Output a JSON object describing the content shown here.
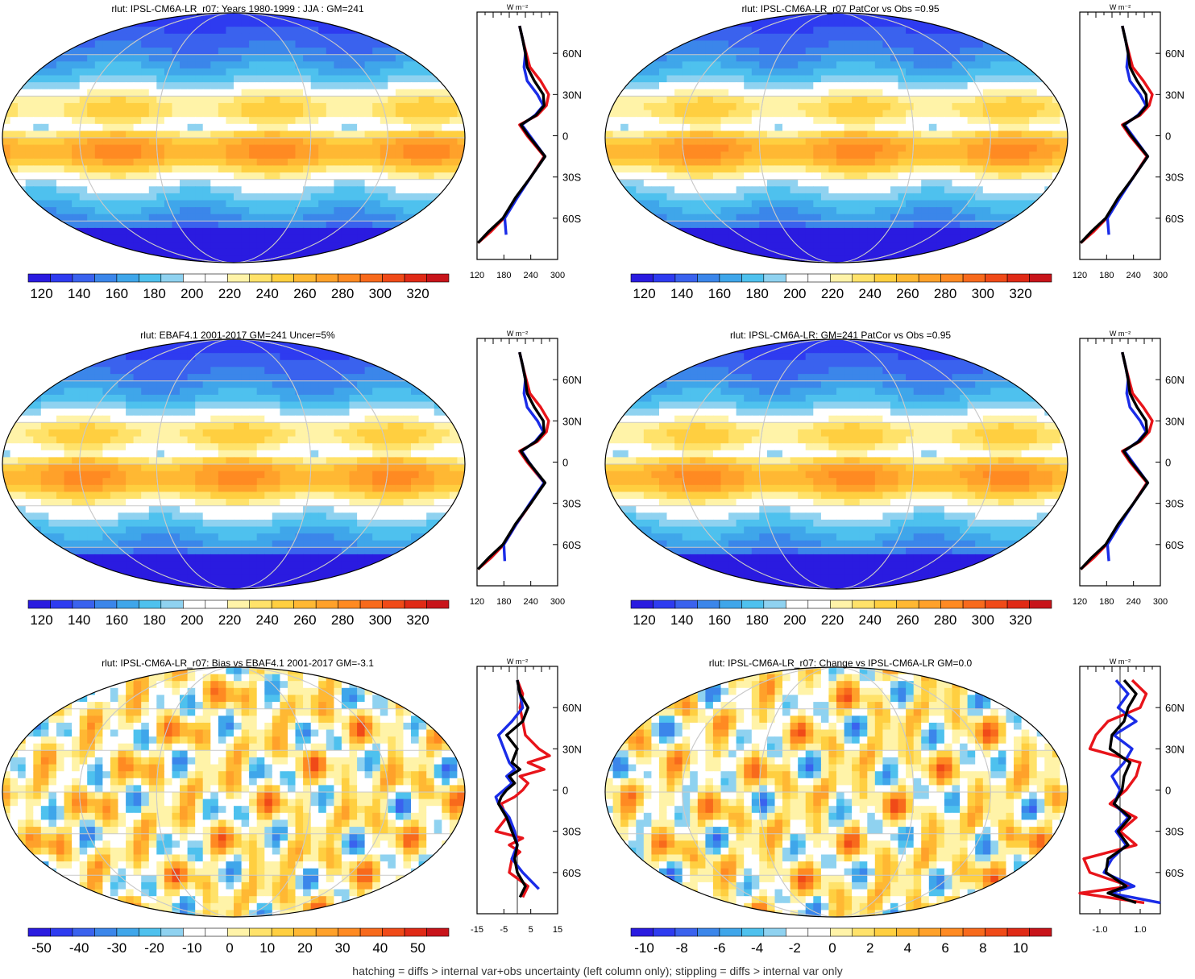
{
  "footnote": "hatching = diffs > internal var+obs uncertainty (left column only); stippling = diffs > internal var only",
  "colors": {
    "abs_scale": [
      "#2a1be0",
      "#2e3bf0",
      "#3a62ee",
      "#3b86ea",
      "#3fa6ea",
      "#4ec1ee",
      "#8fd2f0",
      "#ffffff",
      "#ffffff",
      "#fff3a8",
      "#ffe26a",
      "#ffcf40",
      "#ffb833",
      "#ffa12a",
      "#ff8a22",
      "#f86a1c",
      "#f04a18",
      "#e02a16",
      "#c8141a"
    ],
    "diff_scale": [
      "#2a1be0",
      "#2e3bf0",
      "#3a62ee",
      "#3b86ea",
      "#3fa6ea",
      "#4ec1ee",
      "#8fd2f0",
      "#ffffff",
      "#ffffff",
      "#fff3a8",
      "#ffe26a",
      "#ffcf40",
      "#ffb833",
      "#ffa12a",
      "#ff8a22",
      "#f86a1c",
      "#f04a18",
      "#e02a16",
      "#c8141a"
    ]
  },
  "chart_data": [
    {
      "type": "heatmap",
      "title": "rlut: IPSL-CM6A-LR_r07: Years 1980-1999 : JJA : GM=241",
      "colorbar_labels": [
        "120",
        "140",
        "160",
        "180",
        "200",
        "220",
        "240",
        "260",
        "280",
        "300",
        "320"
      ],
      "profile": {
        "unit_label": "W m⁻²",
        "x_tick_labels": [
          "120",
          "180",
          "240",
          "300"
        ],
        "xlim": [
          120,
          300
        ],
        "lat_tick_labels": [
          "60N",
          "30N",
          "0",
          "30S",
          "60S"
        ],
        "lat_ticks": [
          60,
          30,
          0,
          -30,
          -60
        ],
        "series": [
          {
            "color": "red",
            "lat": [
              -78,
              -70,
              -60,
              -45,
              -30,
              -15,
              0,
              8,
              15,
              22,
              30,
              40,
              50,
              60,
              70,
              80
            ],
            "values": [
              122,
              150,
              180,
              208,
              240,
              270,
              232,
              215,
              255,
              275,
              280,
              262,
              238,
              230,
              222,
              215
            ]
          },
          {
            "color": "blue",
            "lat": [
              -72,
              -60,
              -45,
              -30,
              -15,
              0,
              8,
              15,
              22,
              30,
              40,
              50,
              60,
              70,
              80
            ],
            "values": [
              185,
              182,
              210,
              240,
              272,
              238,
              220,
              250,
              268,
              255,
              232,
              225,
              228,
              222,
              215
            ]
          },
          {
            "color": "black",
            "lat": [
              -78,
              -70,
              -60,
              -45,
              -30,
              -15,
              0,
              8,
              15,
              22,
              30,
              40,
              50,
              60,
              70,
              80
            ],
            "values": [
              122,
              145,
              178,
              206,
              240,
              272,
              235,
              218,
              252,
              270,
              268,
              248,
              232,
              228,
              222,
              215
            ]
          }
        ]
      }
    },
    {
      "type": "heatmap",
      "title": "rlut: IPSL-CM6A-LR_r07 PatCor vs Obs =0.95",
      "colorbar_labels": [
        "120",
        "140",
        "160",
        "180",
        "200",
        "220",
        "240",
        "260",
        "280",
        "300",
        "320"
      ],
      "profile": {
        "unit_label": "W m⁻²",
        "x_tick_labels": [
          "120",
          "180",
          "240",
          "300"
        ],
        "xlim": [
          120,
          300
        ],
        "lat_tick_labels": [
          "60N",
          "30N",
          "0",
          "30S",
          "60S"
        ],
        "lat_ticks": [
          60,
          30,
          0,
          -30,
          -60
        ],
        "series": [
          {
            "color": "red",
            "lat": [
              -78,
              -70,
              -60,
              -45,
              -30,
              -15,
              0,
              8,
              15,
              22,
              30,
              40,
              50,
              60,
              70,
              80
            ],
            "values": [
              122,
              150,
              180,
              208,
              240,
              270,
              232,
              215,
              255,
              275,
              282,
              262,
              238,
              230,
              222,
              215
            ]
          },
          {
            "color": "blue",
            "lat": [
              -72,
              -60,
              -45,
              -30,
              -15,
              0,
              8,
              15,
              22,
              30,
              40,
              50,
              60,
              70,
              80
            ],
            "values": [
              185,
              182,
              210,
              240,
              272,
              238,
              220,
              250,
              268,
              255,
              232,
              225,
              228,
              222,
              215
            ]
          },
          {
            "color": "black",
            "lat": [
              -78,
              -70,
              -60,
              -45,
              -30,
              -15,
              0,
              8,
              15,
              22,
              30,
              40,
              50,
              60,
              70,
              80
            ],
            "values": [
              122,
              145,
              178,
              206,
              240,
              272,
              235,
              218,
              252,
              270,
              268,
              248,
              232,
              228,
              222,
              215
            ]
          }
        ]
      }
    },
    {
      "type": "heatmap",
      "title": "rlut: EBAF4.1 2001-2017 GM=241 Uncer=5%",
      "colorbar_labels": [
        "120",
        "140",
        "160",
        "180",
        "200",
        "220",
        "240",
        "260",
        "280",
        "300",
        "320"
      ],
      "profile": {
        "unit_label": "W m⁻²",
        "x_tick_labels": [
          "120",
          "180",
          "240",
          "300"
        ],
        "xlim": [
          120,
          300
        ],
        "lat_tick_labels": [
          "60N",
          "30N",
          "0",
          "30S",
          "60S"
        ],
        "lat_ticks": [
          60,
          30,
          0,
          -30,
          -60
        ],
        "series": [
          {
            "color": "red",
            "lat": [
              -78,
              -70,
              -60,
              -45,
              -30,
              -15,
              0,
              8,
              15,
              22,
              30,
              40,
              50,
              60,
              70,
              80
            ],
            "values": [
              122,
              150,
              180,
              208,
              240,
              270,
              232,
              215,
              255,
              275,
              280,
              262,
              238,
              230,
              222,
              215
            ]
          },
          {
            "color": "blue",
            "lat": [
              -72,
              -60,
              -45,
              -30,
              -15,
              0,
              8,
              15,
              22,
              30,
              40,
              50,
              60,
              70,
              80
            ],
            "values": [
              182,
              180,
              208,
              238,
              270,
              236,
              220,
              250,
              268,
              255,
              232,
              225,
              228,
              222,
              215
            ]
          },
          {
            "color": "black",
            "lat": [
              -78,
              -70,
              -60,
              -45,
              -30,
              -15,
              0,
              8,
              15,
              22,
              30,
              40,
              50,
              60,
              70,
              80
            ],
            "values": [
              122,
              145,
              178,
              206,
              240,
              272,
              235,
              218,
              252,
              270,
              268,
              248,
              232,
              228,
              222,
              215
            ]
          }
        ]
      }
    },
    {
      "type": "heatmap",
      "title": "rlut: IPSL-CM6A-LR: GM=241 PatCor vs Obs =0.95",
      "colorbar_labels": [
        "120",
        "140",
        "160",
        "180",
        "200",
        "220",
        "240",
        "260",
        "280",
        "300",
        "320"
      ],
      "profile": {
        "unit_label": "W m⁻²",
        "x_tick_labels": [
          "120",
          "180",
          "240",
          "300"
        ],
        "xlim": [
          120,
          300
        ],
        "lat_tick_labels": [
          "60N",
          "30N",
          "0",
          "30S",
          "60S"
        ],
        "lat_ticks": [
          60,
          30,
          0,
          -30,
          -60
        ],
        "series": [
          {
            "color": "red",
            "lat": [
              -78,
              -70,
              -60,
              -45,
              -30,
              -15,
              0,
              8,
              15,
              22,
              30,
              40,
              50,
              60,
              70,
              80
            ],
            "values": [
              122,
              150,
              180,
              208,
              240,
              270,
              232,
              215,
              255,
              275,
              282,
              262,
              238,
              230,
              222,
              215
            ]
          },
          {
            "color": "blue",
            "lat": [
              -72,
              -60,
              -45,
              -30,
              -15,
              0,
              8,
              15,
              22,
              30,
              40,
              50,
              60,
              70,
              80
            ],
            "values": [
              185,
              182,
              210,
              240,
              272,
              238,
              220,
              250,
              268,
              255,
              232,
              225,
              228,
              222,
              215
            ]
          },
          {
            "color": "black",
            "lat": [
              -78,
              -70,
              -60,
              -45,
              -30,
              -15,
              0,
              8,
              15,
              22,
              30,
              40,
              50,
              60,
              70,
              80
            ],
            "values": [
              122,
              145,
              178,
              206,
              240,
              272,
              235,
              218,
              252,
              270,
              268,
              248,
              232,
              228,
              222,
              215
            ]
          }
        ]
      }
    },
    {
      "type": "heatmap",
      "title": "rlut: IPSL-CM6A-LR_r07: Bias vs EBAF4.1 2001-2017 GM=-3.1",
      "colorbar_labels": [
        "-50",
        "-40",
        "-30",
        "-20",
        "-10",
        "0",
        "10",
        "20",
        "30",
        "40",
        "50"
      ],
      "profile": {
        "unit_label": "W m⁻²",
        "x_tick_labels": [
          "-15",
          "-5",
          "5",
          "15"
        ],
        "xlim": [
          -15,
          15
        ],
        "lat_tick_labels": [
          "60N",
          "30N",
          "0",
          "30S",
          "60S"
        ],
        "lat_ticks": [
          60,
          30,
          0,
          -30,
          -60
        ],
        "series": [
          {
            "color": "red",
            "lat": [
              -78,
              -70,
              -60,
              -50,
              -45,
              -40,
              -35,
              -30,
              -20,
              -10,
              -5,
              0,
              5,
              10,
              15,
              20,
              25,
              30,
              40,
              50,
              60,
              70,
              80
            ],
            "values": [
              2,
              4,
              -3,
              -2,
              1,
              -3,
              2,
              -8,
              -4,
              -6,
              -1,
              2,
              4,
              1,
              10,
              4,
              12,
              8,
              3,
              2,
              1,
              2,
              0
            ]
          },
          {
            "color": "blue",
            "lat": [
              -72,
              -60,
              -50,
              -40,
              -30,
              -20,
              -10,
              -5,
              0,
              5,
              10,
              15,
              20,
              30,
              40,
              50,
              60,
              70,
              80
            ],
            "values": [
              8,
              2,
              -2,
              0,
              -1,
              -3,
              -7,
              -8,
              -5,
              -2,
              -4,
              -1,
              -3,
              -5,
              -7,
              -2,
              2,
              1,
              0
            ]
          },
          {
            "color": "black",
            "lat": [
              -78,
              -70,
              -60,
              -50,
              -40,
              -30,
              -20,
              -10,
              -5,
              0,
              5,
              10,
              15,
              20,
              30,
              40,
              50,
              60,
              70,
              80
            ],
            "values": [
              1,
              3,
              0,
              -1,
              0,
              -2,
              -4,
              -7,
              -6,
              -4,
              -1,
              -3,
              1,
              -2,
              0,
              -4,
              2,
              4,
              1,
              0
            ]
          }
        ]
      }
    },
    {
      "type": "heatmap",
      "title": "rlut: IPSL-CM6A-LR_r07: Change vs IPSL-CM6A-LR GM=0.0",
      "colorbar_labels": [
        "-10",
        "-8",
        "-6",
        "-4",
        "-2",
        "0",
        "2",
        "4",
        "6",
        "8",
        "10"
      ],
      "profile": {
        "unit_label": "W m⁻²",
        "x_tick_labels": [
          "-1.0",
          "1.0"
        ],
        "xlim": [
          -2,
          2
        ],
        "lat_tick_labels": [
          "60N",
          "30N",
          "0",
          "30S",
          "60S"
        ],
        "lat_ticks": [
          60,
          30,
          0,
          -30,
          -60
        ],
        "series": [
          {
            "color": "red",
            "lat": [
              -82,
              -75,
              -70,
              -60,
              -50,
              -40,
              -30,
              -20,
              -10,
              0,
              10,
              20,
              30,
              40,
              50,
              60,
              70,
              80
            ],
            "values": [
              1.2,
              -2.0,
              0.5,
              -1.5,
              -1.8,
              0.8,
              0.0,
              0.8,
              -0.5,
              0.3,
              0.8,
              1.0,
              -1.5,
              -1.2,
              -0.6,
              1.0,
              1.3,
              0.6
            ]
          },
          {
            "color": "blue",
            "lat": [
              -82,
              -75,
              -70,
              -60,
              -50,
              -40,
              -30,
              -20,
              -10,
              0,
              10,
              20,
              30,
              40,
              50,
              60,
              70,
              80
            ],
            "values": [
              2.0,
              -0.5,
              0.7,
              -0.8,
              -0.4,
              0.3,
              -0.2,
              0.4,
              -0.3,
              0.0,
              -0.4,
              0.2,
              0.6,
              -0.3,
              0.8,
              -0.1,
              0.4,
              -0.2
            ]
          },
          {
            "color": "black",
            "lat": [
              -82,
              -75,
              -70,
              -60,
              -50,
              -40,
              -30,
              -20,
              -10,
              0,
              10,
              20,
              30,
              40,
              50,
              60,
              70,
              80
            ],
            "values": [
              0.8,
              -0.6,
              0.3,
              -0.7,
              -0.6,
              0.4,
              -0.1,
              0.5,
              -0.3,
              0.1,
              0.2,
              0.5,
              -0.5,
              -0.4,
              0.2,
              0.4,
              0.8,
              0.2
            ]
          }
        ]
      }
    }
  ]
}
